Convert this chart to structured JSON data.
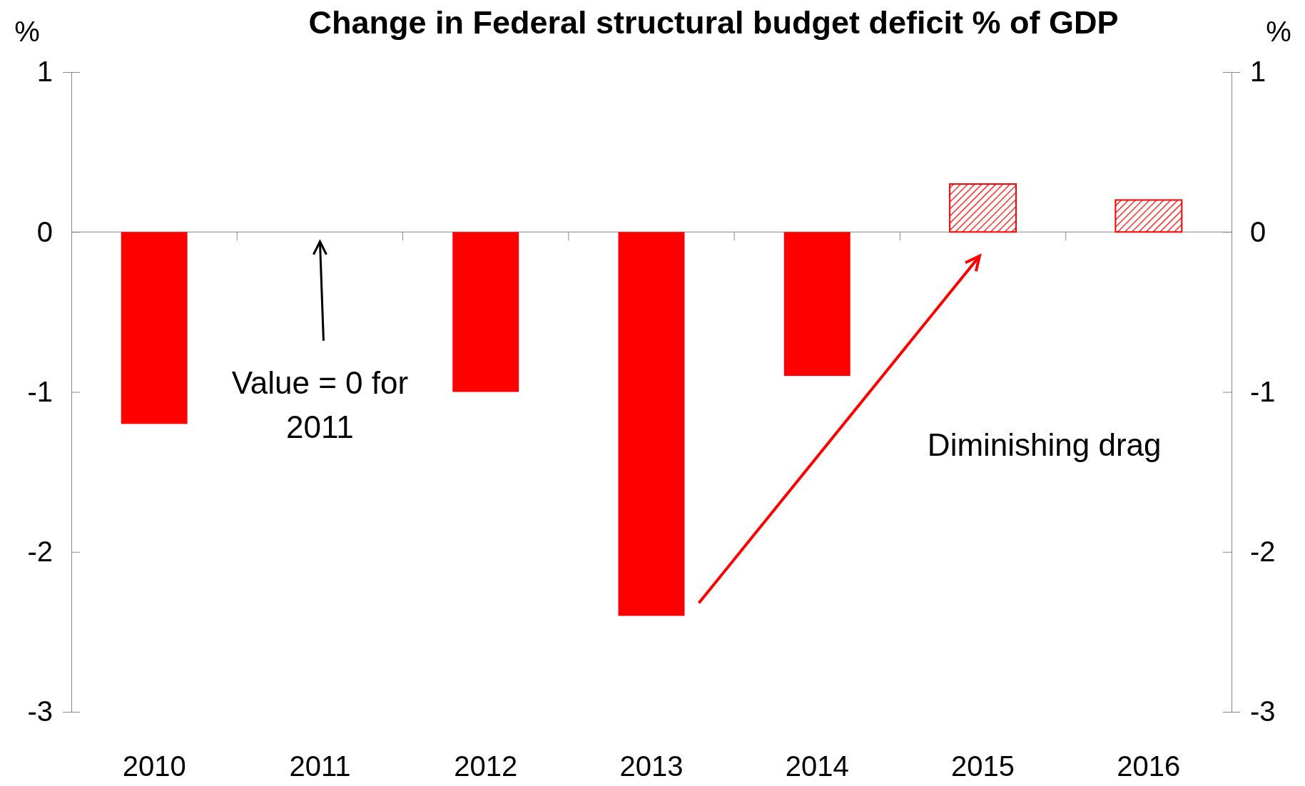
{
  "chart_data": {
    "type": "bar",
    "title": "Change in Federal structural budget deficit % of GDP",
    "ylabel": "%",
    "y2label": "%",
    "categories": [
      "2010",
      "2011",
      "2012",
      "2013",
      "2014",
      "2015",
      "2016"
    ],
    "series": [
      {
        "color": "#ff0000",
        "values": [
          -1.2,
          0,
          -1.0,
          -2.4,
          -0.9,
          null,
          null
        ]
      },
      {
        "color": "#ff0000",
        "values": [
          null,
          null,
          null,
          null,
          null,
          0.3,
          0.2
        ]
      }
    ],
    "ylim": [
      -3,
      1
    ],
    "yticks": [
      -3,
      -2,
      -1,
      0,
      1
    ],
    "y2lim": [
      -3,
      1
    ],
    "y2ticks": [
      -3,
      -2,
      -1,
      0,
      1
    ],
    "annotations": [
      "Value = 0 for 2011",
      "Diminishing drag"
    ]
  }
}
